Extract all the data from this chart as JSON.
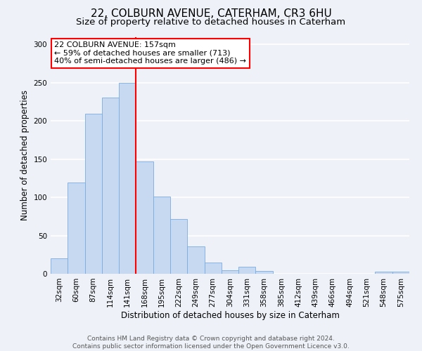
{
  "title": "22, COLBURN AVENUE, CATERHAM, CR3 6HU",
  "subtitle": "Size of property relative to detached houses in Caterham",
  "xlabel": "Distribution of detached houses by size in Caterham",
  "ylabel": "Number of detached properties",
  "bar_labels": [
    "32sqm",
    "60sqm",
    "87sqm",
    "114sqm",
    "141sqm",
    "168sqm",
    "195sqm",
    "222sqm",
    "249sqm",
    "277sqm",
    "304sqm",
    "331sqm",
    "358sqm",
    "385sqm",
    "412sqm",
    "439sqm",
    "466sqm",
    "494sqm",
    "521sqm",
    "548sqm",
    "575sqm"
  ],
  "bar_values": [
    20,
    119,
    209,
    231,
    250,
    147,
    101,
    72,
    36,
    15,
    5,
    9,
    4,
    0,
    0,
    0,
    0,
    0,
    0,
    3,
    3
  ],
  "bar_color": "#c6d9f0",
  "bar_edge_color": "#7aabe0",
  "bar_width": 1.0,
  "ylim": [
    0,
    310
  ],
  "yticks": [
    0,
    50,
    100,
    150,
    200,
    250,
    300
  ],
  "vline_x": 4.5,
  "vline_color": "red",
  "annotation_text": "22 COLBURN AVENUE: 157sqm\n← 59% of detached houses are smaller (713)\n40% of semi-detached houses are larger (486) →",
  "annotation_box_color": "white",
  "annotation_box_edge": "red",
  "footer_line1": "Contains HM Land Registry data © Crown copyright and database right 2024.",
  "footer_line2": "Contains public sector information licensed under the Open Government Licence v3.0.",
  "background_color": "#eef2f8",
  "grid_color": "white",
  "title_fontsize": 11,
  "subtitle_fontsize": 9.5,
  "axis_label_fontsize": 8.5,
  "tick_fontsize": 7.5,
  "annotation_fontsize": 8,
  "footer_fontsize": 6.5
}
